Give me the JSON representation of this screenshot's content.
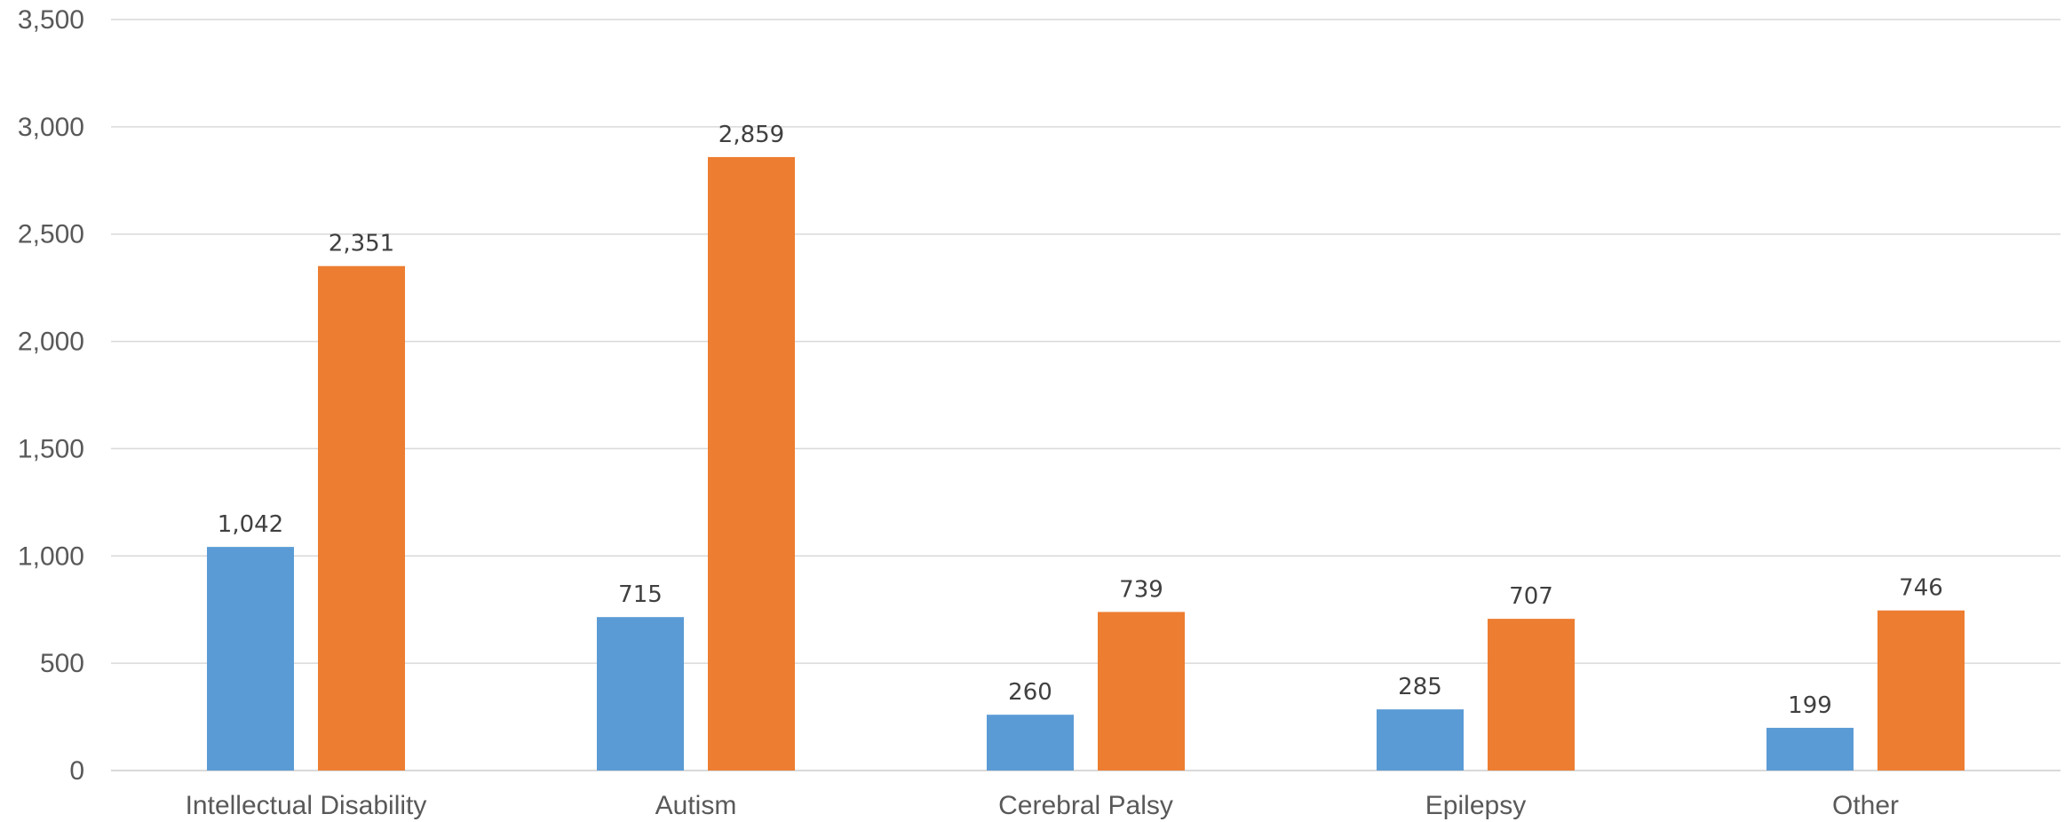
{
  "chart_data": {
    "type": "bar",
    "categories": [
      "Intellectual Disability",
      "Autism",
      "Cerebral Palsy",
      "Epilepsy",
      "Other"
    ],
    "series": [
      {
        "values": [
          1042,
          715,
          260,
          285,
          199
        ],
        "color": "#5b9bd5"
      },
      {
        "values": [
          2351,
          2859,
          739,
          707,
          746
        ],
        "color": "#ed7d31"
      }
    ],
    "data_labels": [
      [
        "1,042",
        "715",
        "260",
        "285",
        "199"
      ],
      [
        "2,351",
        "2,859",
        "739",
        "707",
        "746"
      ]
    ],
    "yticks": [
      "0",
      "500",
      "1,000",
      "1,500",
      "2,000",
      "2,500",
      "3,000",
      "3,500"
    ],
    "ylim": [
      0,
      3500
    ],
    "grid": true,
    "legend": "none",
    "title": "",
    "xlabel": "",
    "ylabel": ""
  }
}
